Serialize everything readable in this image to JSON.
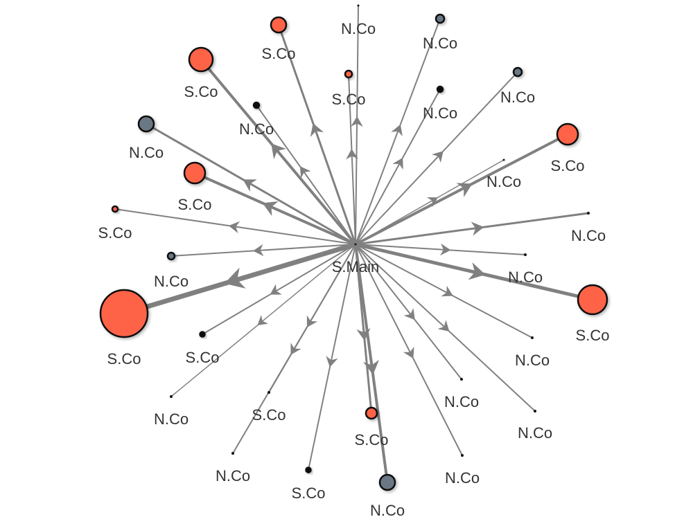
{
  "nodes": [
    {
      "label": "S.Main"
    },
    {
      "label": "N.Co"
    },
    {
      "label": "S.Co"
    },
    {
      "label": "N.Co"
    },
    {
      "label": "S.Co"
    },
    {
      "label": "S.Co"
    },
    {
      "label": "N.Co"
    },
    {
      "label": "N.Co"
    },
    {
      "label": "N.Co"
    },
    {
      "label": "N.Co"
    },
    {
      "label": "S.Co"
    },
    {
      "label": "S.Co"
    },
    {
      "label": "N.Co"
    },
    {
      "label": "S.Co"
    },
    {
      "label": "N.Co"
    },
    {
      "label": "N.Co"
    },
    {
      "label": "N.Co"
    },
    {
      "label": "S.Co"
    },
    {
      "label": "S.Co"
    },
    {
      "label": "S.Co"
    },
    {
      "label": "N.Co"
    },
    {
      "label": "N.Co"
    },
    {
      "label": "S.Co"
    },
    {
      "label": "N.Co"
    },
    {
      "label": "S.Co"
    },
    {
      "label": "N.Co"
    },
    {
      "label": "N.Co"
    },
    {
      "label": "S.Co"
    },
    {
      "label": "N.Co"
    },
    {
      "label": "N.Co"
    }
  ]
}
